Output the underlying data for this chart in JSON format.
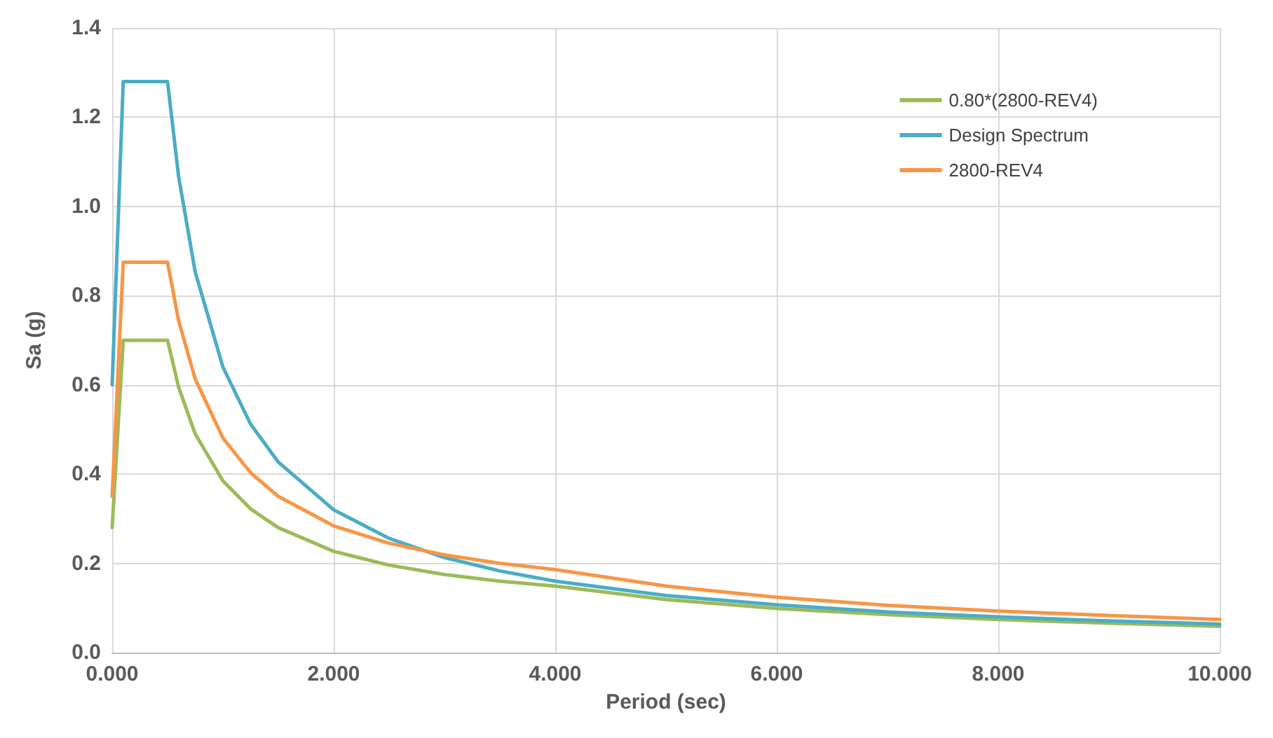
{
  "chart_data": {
    "type": "line",
    "xlabel": "Period (sec)",
    "ylabel": "Sa (g)",
    "x": [
      0,
      0.1,
      0.5,
      0.6,
      0.75,
      1,
      1.25,
      1.5,
      2,
      2.5,
      3,
      3.5,
      4,
      5,
      6,
      7,
      8,
      9,
      10
    ],
    "series": [
      {
        "name": "0.80*(2800-REV4)",
        "color": "#9bbb59",
        "values": [
          0.28,
          0.7,
          0.7,
          0.595,
          0.49,
          0.385,
          0.322,
          0.28,
          0.227,
          0.196,
          0.175,
          0.16,
          0.149,
          0.119,
          0.099,
          0.085,
          0.074,
          0.066,
          0.059
        ]
      },
      {
        "name": "Design Spectrum",
        "color": "#4bacc6",
        "values": [
          0.6,
          1.28,
          1.28,
          1.067,
          0.853,
          0.64,
          0.512,
          0.427,
          0.32,
          0.256,
          0.213,
          0.183,
          0.16,
          0.128,
          0.107,
          0.091,
          0.08,
          0.071,
          0.064
        ]
      },
      {
        "name": "2800-REV4",
        "color": "#f79646",
        "values": [
          0.35,
          0.875,
          0.875,
          0.744,
          0.613,
          0.481,
          0.403,
          0.35,
          0.284,
          0.245,
          0.219,
          0.2,
          0.186,
          0.149,
          0.124,
          0.106,
          0.093,
          0.083,
          0.074
        ]
      }
    ],
    "xlim": [
      0,
      10
    ],
    "xticks": [
      {
        "value": 0,
        "label": "0.000"
      },
      {
        "value": 2,
        "label": "2.000"
      },
      {
        "value": 4,
        "label": "4.000"
      },
      {
        "value": 6,
        "label": "6.000"
      },
      {
        "value": 8,
        "label": "8.000"
      },
      {
        "value": 10,
        "label": "10.000"
      }
    ],
    "ylim": [
      0,
      1.4
    ],
    "yticks": [
      {
        "value": 0,
        "label": "0.0"
      },
      {
        "value": 0.2,
        "label": "0.2"
      },
      {
        "value": 0.4,
        "label": "0.4"
      },
      {
        "value": 0.6,
        "label": "0.6"
      },
      {
        "value": 0.8,
        "label": "0.8"
      },
      {
        "value": 1,
        "label": "1.0"
      },
      {
        "value": 1.2,
        "label": "1.2"
      },
      {
        "value": 1.4,
        "label": "1.4"
      }
    ],
    "grid": true,
    "legend": "top right",
    "marker": "none",
    "line_style": "solid"
  }
}
